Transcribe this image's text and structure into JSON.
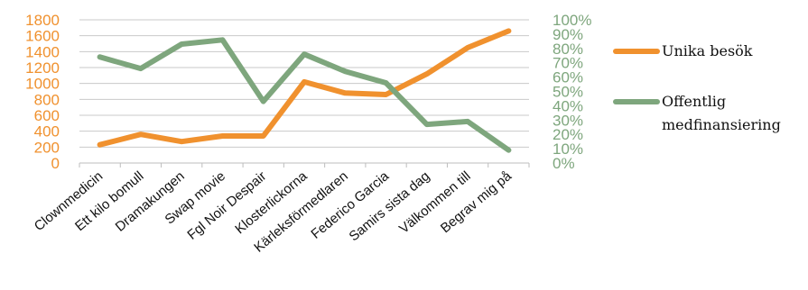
{
  "chart_data": {
    "type": "line",
    "categories": [
      "Clownmedicin",
      "Ett kilo bomull",
      "Dramakungen",
      "Swap movie",
      "Fgl Noir Despair",
      "Klosterlickorna",
      "Kärleksförmedlaren",
      "Federico Garcia",
      "Samirs sista dag",
      "Välkommen till",
      "Begrav mig på"
    ],
    "series": [
      {
        "name": "Unika besök",
        "axis": "left",
        "color": "#F0912E",
        "values": [
          230,
          360,
          270,
          340,
          340,
          1020,
          880,
          860,
          1120,
          1450,
          1660
        ]
      },
      {
        "name": "Offentlig medfinansiering",
        "axis": "right",
        "color": "#7EA67D",
        "values": [
          0.74,
          0.66,
          0.83,
          0.86,
          0.43,
          0.76,
          0.64,
          0.56,
          0.27,
          0.29,
          0.09
        ]
      }
    ],
    "y_left": {
      "lim": [
        0,
        1800
      ],
      "ticks": [
        "0",
        "200",
        "400",
        "600",
        "800",
        "1000",
        "1200",
        "1400",
        "1600",
        "1800"
      ],
      "color": "#F0912E"
    },
    "y_right": {
      "lim": [
        0,
        1
      ],
      "ticks": [
        "0%",
        "10%",
        "20%",
        "30%",
        "40%",
        "50%",
        "60%",
        "70%",
        "80%",
        "90%",
        "100%"
      ],
      "color": "#7EA67D"
    },
    "grid": true,
    "legend": {
      "placement": "right",
      "items": [
        {
          "label": "Unika besök",
          "color": "#F0912E"
        },
        {
          "label_lines": [
            "Offentlig",
            "medfinansiering"
          ],
          "color": "#7EA67D"
        }
      ]
    }
  }
}
